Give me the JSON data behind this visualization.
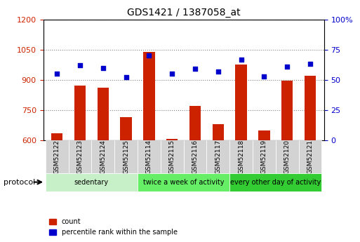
{
  "title": "GDS1421 / 1387058_at",
  "samples": [
    "GSM52122",
    "GSM52123",
    "GSM52124",
    "GSM52125",
    "GSM52114",
    "GSM52115",
    "GSM52116",
    "GSM52117",
    "GSM52118",
    "GSM52119",
    "GSM52120",
    "GSM52121"
  ],
  "counts": [
    635,
    870,
    860,
    715,
    1040,
    608,
    770,
    680,
    975,
    648,
    895,
    920
  ],
  "percentiles": [
    55,
    62,
    60,
    52,
    70,
    55,
    59,
    57,
    67,
    53,
    61,
    63
  ],
  "ylim_left": [
    600,
    1200
  ],
  "ylim_right": [
    0,
    100
  ],
  "yticks_left": [
    600,
    750,
    900,
    1050,
    1200
  ],
  "yticks_right": [
    0,
    25,
    50,
    75,
    100
  ],
  "groups": [
    {
      "label": "sedentary",
      "start": 0,
      "end": 4,
      "color": "#90EE90"
    },
    {
      "label": "twice a week of activity",
      "start": 4,
      "end": 8,
      "color": "#00CC00"
    },
    {
      "label": "every other day of activity",
      "start": 8,
      "end": 12,
      "color": "#00AA00"
    }
  ],
  "bar_color": "#CC2200",
  "dot_color": "#0000CC",
  "bar_bottom": 600,
  "protocol_label": "protocol",
  "legend_count": "count",
  "legend_percentile": "percentile rank within the sample",
  "bg_color": "#FFFFFF",
  "tick_color_left": "#CC2200",
  "tick_color_right": "#0000CC"
}
